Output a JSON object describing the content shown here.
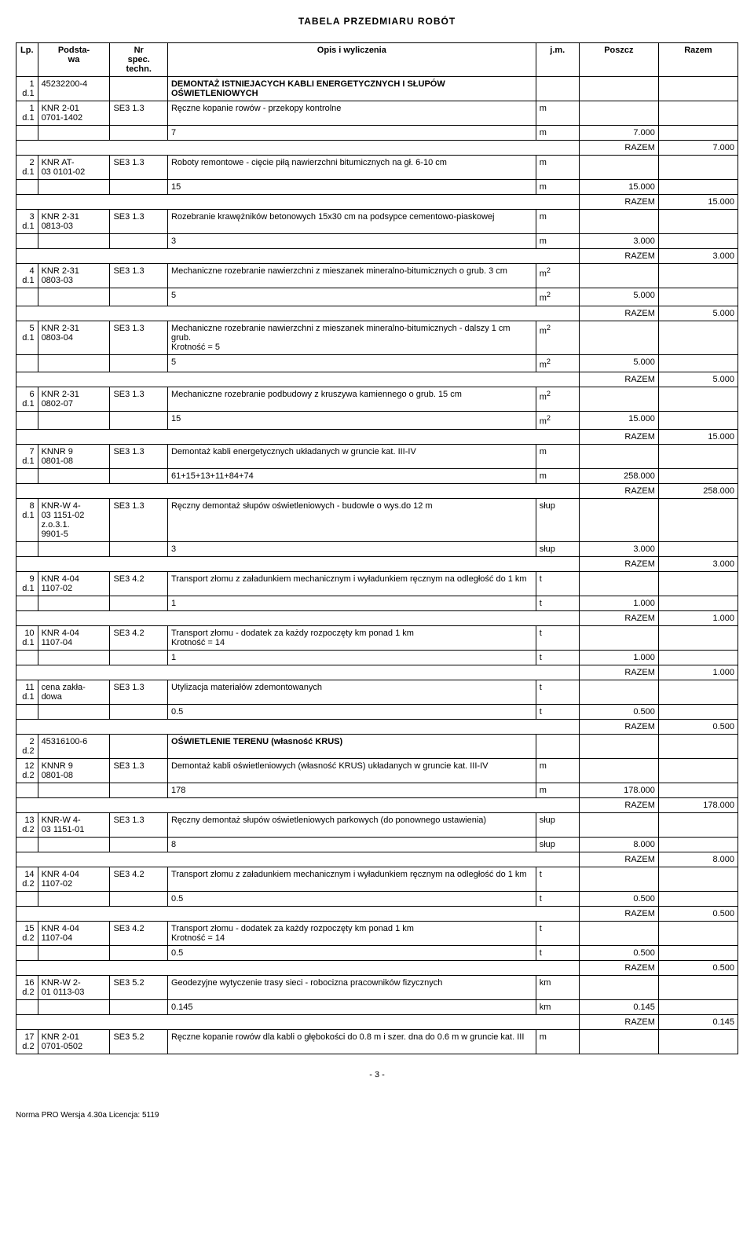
{
  "page_title": "TABELA  PRZEDMIARU  ROBÓT",
  "headers": {
    "lp": "Lp.",
    "podstawa": "Podsta-\nwa",
    "nr": "Nr\nspec.\ntechn.",
    "opis": "Opis i wyliczenia",
    "jm": "j.m.",
    "poszcz": "Poszcz",
    "razem": "Razem"
  },
  "razem_label": "RAZEM",
  "page_num": "- 3 -",
  "footer": "Norma PRO Wersja 4.30a Licencja: 5119",
  "rows": [
    {
      "type": "section",
      "lp": "1\nd.1",
      "podstawa": "45232200-4",
      "nr": "",
      "opis": "DEMONTAŻ ISTNIEJACYCH KABLI ENERGETYCZNYCH I SŁUPÓW OŚWIETLENIOWYCH",
      "jm": "",
      "poszcz": "",
      "razem": ""
    },
    {
      "type": "item",
      "lp": "1\nd.1",
      "podstawa": "KNR 2-01\n0701-1402",
      "nr": "SE3  1.3",
      "opis": "Ręczne kopanie rowów - przekopy kontrolne",
      "jm": "m",
      "poszcz": "",
      "razem": ""
    },
    {
      "type": "calc",
      "lp": "",
      "podstawa": "",
      "nr": "",
      "opis": "7",
      "jm": "m",
      "poszcz": "7.000",
      "razem": ""
    },
    {
      "type": "razem",
      "razem": "7.000"
    },
    {
      "type": "item",
      "lp": "2\nd.1",
      "podstawa": "KNR AT-\n03 0101-02",
      "nr": "SE3  1.3",
      "opis": "Roboty remontowe - cięcie piłą nawierzchni bitumicznych na gł. 6-10 cm",
      "jm": "m",
      "poszcz": "",
      "razem": ""
    },
    {
      "type": "calc",
      "lp": "",
      "podstawa": "",
      "nr": "",
      "opis": "15",
      "jm": "m",
      "poszcz": "15.000",
      "razem": ""
    },
    {
      "type": "razem",
      "razem": "15.000"
    },
    {
      "type": "item",
      "lp": "3\nd.1",
      "podstawa": "KNR 2-31\n0813-03",
      "nr": "SE3  1.3",
      "opis": "Rozebranie krawężników betonowych 15x30 cm na podsypce cementowo-piaskowej",
      "jm": "m",
      "poszcz": "",
      "razem": ""
    },
    {
      "type": "calc",
      "lp": "",
      "podstawa": "",
      "nr": "",
      "opis": "3",
      "jm": "m",
      "poszcz": "3.000",
      "razem": ""
    },
    {
      "type": "razem",
      "razem": "3.000"
    },
    {
      "type": "item",
      "lp": "4\nd.1",
      "podstawa": "KNR 2-31\n0803-03",
      "nr": "SE3  1.3",
      "opis": "Mechaniczne rozebranie nawierzchni z mieszanek mineralno-bitumicznych o grub. 3 cm",
      "jm": "m2",
      "poszcz": "",
      "razem": ""
    },
    {
      "type": "calc",
      "lp": "",
      "podstawa": "",
      "nr": "",
      "opis": "5",
      "jm": "m2",
      "poszcz": "5.000",
      "razem": ""
    },
    {
      "type": "razem",
      "razem": "5.000"
    },
    {
      "type": "item",
      "lp": "5\nd.1",
      "podstawa": "KNR 2-31\n0803-04",
      "nr": "SE3  1.3",
      "opis": "Mechaniczne rozebranie nawierzchni z mieszanek mineralno-bitumicznych - dalszy 1 cm grub.\nKrotność = 5",
      "jm": "m2",
      "poszcz": "",
      "razem": ""
    },
    {
      "type": "calc",
      "lp": "",
      "podstawa": "",
      "nr": "",
      "opis": "5",
      "jm": "m2",
      "poszcz": "5.000",
      "razem": ""
    },
    {
      "type": "razem",
      "razem": "5.000"
    },
    {
      "type": "item",
      "lp": "6\nd.1",
      "podstawa": "KNR 2-31\n0802-07",
      "nr": "SE3  1.3",
      "opis": "Mechaniczne rozebranie podbudowy z kruszywa kamiennego o grub. 15 cm",
      "jm": "m2",
      "poszcz": "",
      "razem": ""
    },
    {
      "type": "calc",
      "lp": "",
      "podstawa": "",
      "nr": "",
      "opis": "15",
      "jm": "m2",
      "poszcz": "15.000",
      "razem": ""
    },
    {
      "type": "razem",
      "razem": "15.000"
    },
    {
      "type": "item",
      "lp": "7\nd.1",
      "podstawa": "KNNR 9\n0801-08",
      "nr": "SE3  1.3",
      "opis": "Demontaż kabli energetycznych układanych w gruncie kat. III-IV",
      "jm": "m",
      "poszcz": "",
      "razem": ""
    },
    {
      "type": "calc",
      "lp": "",
      "podstawa": "",
      "nr": "",
      "opis": "61+15+13+11+84+74",
      "jm": "m",
      "poszcz": "258.000",
      "razem": ""
    },
    {
      "type": "razem",
      "razem": "258.000"
    },
    {
      "type": "item",
      "lp": "8\nd.1",
      "podstawa": "KNR-W 4-\n03 1151-02\nz.o.3.1.\n9901-5",
      "nr": "SE3  1.3",
      "opis": "Ręczny demontaż słupów oświetleniowych - budowle o wys.do 12 m",
      "jm": "słup",
      "poszcz": "",
      "razem": ""
    },
    {
      "type": "calc",
      "lp": "",
      "podstawa": "",
      "nr": "",
      "opis": "3",
      "jm": "słup",
      "poszcz": "3.000",
      "razem": ""
    },
    {
      "type": "razem",
      "razem": "3.000"
    },
    {
      "type": "item",
      "lp": "9\nd.1",
      "podstawa": "KNR 4-04\n1107-02",
      "nr": "SE3  4.2",
      "opis": "Transport złomu z załadunkiem mechanicznym i wyładunkiem ręcznym na odległość do 1 km",
      "jm": "t",
      "poszcz": "",
      "razem": ""
    },
    {
      "type": "calc",
      "lp": "",
      "podstawa": "",
      "nr": "",
      "opis": "1",
      "jm": "t",
      "poszcz": "1.000",
      "razem": ""
    },
    {
      "type": "razem",
      "razem": "1.000"
    },
    {
      "type": "item",
      "lp": "10\nd.1",
      "podstawa": "KNR 4-04\n1107-04",
      "nr": "SE3  4.2",
      "opis": "Transport złomu - dodatek za każdy rozpoczęty km ponad 1 km\nKrotność = 14",
      "jm": "t",
      "poszcz": "",
      "razem": ""
    },
    {
      "type": "calc",
      "lp": "",
      "podstawa": "",
      "nr": "",
      "opis": "1",
      "jm": "t",
      "poszcz": "1.000",
      "razem": ""
    },
    {
      "type": "razem",
      "razem": "1.000"
    },
    {
      "type": "item",
      "lp": "11\nd.1",
      "podstawa": "cena zakła-\ndowa",
      "nr": "SE3  1.3",
      "opis": "Utylizacja materiałów zdemontowanych",
      "jm": "t",
      "poszcz": "",
      "razem": ""
    },
    {
      "type": "calc",
      "lp": "",
      "podstawa": "",
      "nr": "",
      "opis": "0.5",
      "jm": "t",
      "poszcz": "0.500",
      "razem": ""
    },
    {
      "type": "razem",
      "razem": "0.500"
    },
    {
      "type": "section",
      "lp": "2\nd.2",
      "podstawa": "45316100-6",
      "nr": "",
      "opis": "OŚWIETLENIE  TERENU  (własność KRUS)",
      "jm": "",
      "poszcz": "",
      "razem": ""
    },
    {
      "type": "item",
      "lp": "12\nd.2",
      "podstawa": "KNNR 9\n0801-08",
      "nr": "SE3  1.3",
      "opis": "Demontaż kabli oświetleniowych (własność KRUS) układanych w gruncie kat. III-IV",
      "jm": "m",
      "poszcz": "",
      "razem": ""
    },
    {
      "type": "calc",
      "lp": "",
      "podstawa": "",
      "nr": "",
      "opis": "178",
      "jm": "m",
      "poszcz": "178.000",
      "razem": ""
    },
    {
      "type": "razem",
      "razem": "178.000"
    },
    {
      "type": "item",
      "lp": "13\nd.2",
      "podstawa": "KNR-W 4-\n03 1151-01",
      "nr": "SE3  1.3",
      "opis": "Ręczny demontaż słupów oświetleniowych parkowych (do ponownego ustawienia)",
      "jm": "słup",
      "poszcz": "",
      "razem": ""
    },
    {
      "type": "calc",
      "lp": "",
      "podstawa": "",
      "nr": "",
      "opis": "8",
      "jm": "słup",
      "poszcz": "8.000",
      "razem": ""
    },
    {
      "type": "razem",
      "razem": "8.000"
    },
    {
      "type": "item",
      "lp": "14\nd.2",
      "podstawa": "KNR 4-04\n1107-02",
      "nr": "SE3  4.2",
      "opis": "Transport złomu z załadunkiem mechanicznym i wyładunkiem ręcznym na odległość do 1 km",
      "jm": "t",
      "poszcz": "",
      "razem": ""
    },
    {
      "type": "calc",
      "lp": "",
      "podstawa": "",
      "nr": "",
      "opis": "0.5",
      "jm": "t",
      "poszcz": "0.500",
      "razem": ""
    },
    {
      "type": "razem",
      "razem": "0.500"
    },
    {
      "type": "item",
      "lp": "15\nd.2",
      "podstawa": "KNR 4-04\n1107-04",
      "nr": "SE3  4.2",
      "opis": "Transport złomu - dodatek za każdy rozpoczęty km ponad 1 km\nKrotność = 14",
      "jm": "t",
      "poszcz": "",
      "razem": ""
    },
    {
      "type": "calc",
      "lp": "",
      "podstawa": "",
      "nr": "",
      "opis": "0.5",
      "jm": "t",
      "poszcz": "0.500",
      "razem": ""
    },
    {
      "type": "razem",
      "razem": "0.500"
    },
    {
      "type": "item",
      "lp": "16\nd.2",
      "podstawa": "KNR-W 2-\n01 0113-03",
      "nr": "SE3  5.2",
      "opis": "Geodezyjne wytyczenie trasy sieci  - robocizna pracowników fizycznych",
      "jm": "km",
      "poszcz": "",
      "razem": ""
    },
    {
      "type": "calc",
      "lp": "",
      "podstawa": "",
      "nr": "",
      "opis": "0.145",
      "jm": "km",
      "poszcz": "0.145",
      "razem": ""
    },
    {
      "type": "razem",
      "razem": "0.145"
    },
    {
      "type": "item",
      "lp": "17\nd.2",
      "podstawa": "KNR 2-01\n0701-0502",
      "nr": "SE3  5.2",
      "opis": "Ręczne kopanie rowów dla kabli o głębokości do 0.8 m i szer. dna do 0.6 m w gruncie kat. III",
      "jm": "m",
      "poszcz": "",
      "razem": ""
    }
  ]
}
